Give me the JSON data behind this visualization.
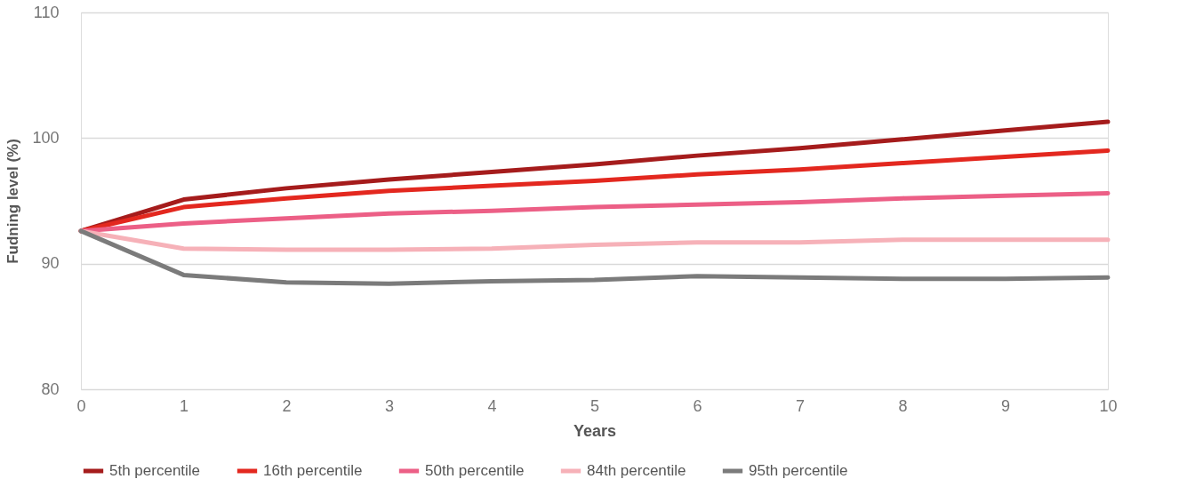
{
  "chart_data": {
    "type": "line",
    "xlabel": "Years",
    "ylabel": "Fudning level (%)",
    "x": [
      0,
      1,
      2,
      3,
      4,
      5,
      6,
      7,
      8,
      9,
      10
    ],
    "series": [
      {
        "name": "5th percentile",
        "color": "#a51c1c",
        "values": [
          92.6,
          95.1,
          96.0,
          96.7,
          97.3,
          97.9,
          98.6,
          99.2,
          99.9,
          100.6,
          101.3
        ]
      },
      {
        "name": "16th percentile",
        "color": "#e3281f",
        "values": [
          92.6,
          94.5,
          95.2,
          95.8,
          96.2,
          96.6,
          97.1,
          97.5,
          98.0,
          98.5,
          99.0
        ]
      },
      {
        "name": "50th percentile",
        "color": "#ec5f86",
        "values": [
          92.6,
          93.2,
          93.6,
          94.0,
          94.2,
          94.5,
          94.7,
          94.9,
          95.2,
          95.4,
          95.6
        ]
      },
      {
        "name": "84th percentile",
        "color": "#f6b1b8",
        "values": [
          92.6,
          91.2,
          91.1,
          91.1,
          91.2,
          91.5,
          91.7,
          91.7,
          91.9,
          91.9,
          91.9
        ]
      },
      {
        "name": "95th percentile",
        "color": "#7b7b7b",
        "values": [
          92.6,
          89.1,
          88.5,
          88.4,
          88.6,
          88.7,
          89.0,
          88.9,
          88.8,
          88.8,
          88.9
        ]
      }
    ],
    "xlim": [
      0,
      10
    ],
    "xticks": [
      0,
      1,
      2,
      3,
      4,
      5,
      6,
      7,
      8,
      9,
      10
    ],
    "ylim": [
      80,
      110
    ],
    "yticks": [
      80,
      90,
      100,
      110
    ],
    "grid": "y",
    "legend": "bottom",
    "marker": "none",
    "line_style": "solid"
  }
}
